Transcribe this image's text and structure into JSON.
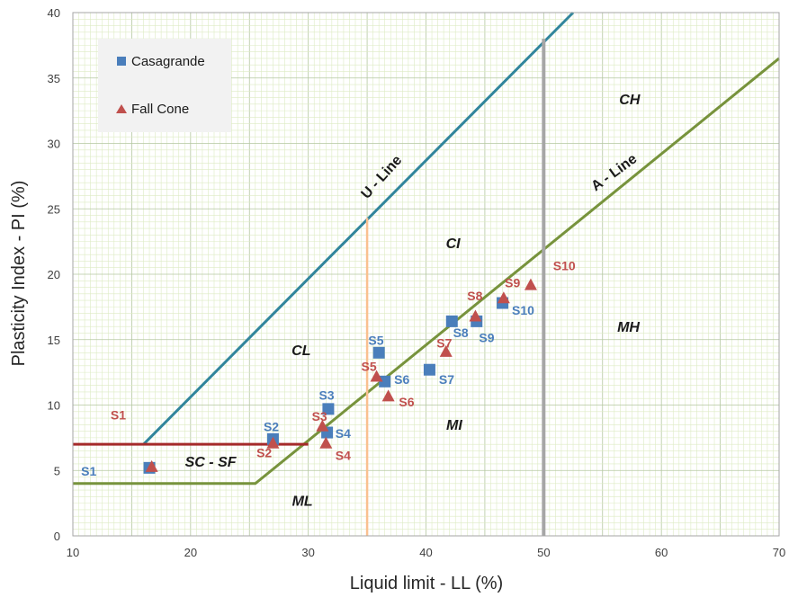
{
  "chart_data": {
    "type": "scatter",
    "xlabel": "Liquid  limit  - LL (%)",
    "ylabel": "Plasticity Index - PI (%)",
    "xlim": [
      10,
      70
    ],
    "ylim": [
      0,
      40
    ],
    "x_ticks": [
      10,
      20,
      30,
      40,
      50,
      60,
      70
    ],
    "y_ticks": [
      0,
      5,
      10,
      15,
      20,
      25,
      30,
      35,
      40
    ],
    "grid": "minor and major",
    "legend": "top-left",
    "colors": {
      "casagrande": "#4a7ebb",
      "fall_cone": "#c0504d",
      "u_line": "#31859c",
      "a_line": "#77933c",
      "pi7_line": "#a52a2a",
      "ll35_line": "#fac090",
      "ll50_line": "#a6a6a6",
      "grid_minor": "#ddebc3",
      "grid_major": "#b4c7a0"
    },
    "series": [
      {
        "name": "Casagrande",
        "marker": "square",
        "points": [
          {
            "label": "S1",
            "x": 16.5,
            "y": 5.2
          },
          {
            "label": "S2",
            "x": 27.0,
            "y": 7.4
          },
          {
            "label": "S3",
            "x": 31.7,
            "y": 9.7
          },
          {
            "label": "S4",
            "x": 31.6,
            "y": 7.9
          },
          {
            "label": "S5",
            "x": 36.0,
            "y": 14.0
          },
          {
            "label": "S6",
            "x": 36.5,
            "y": 11.8
          },
          {
            "label": "S7",
            "x": 40.3,
            "y": 12.7
          },
          {
            "label": "S8",
            "x": 42.2,
            "y": 16.4
          },
          {
            "label": "S9",
            "x": 44.3,
            "y": 16.4
          },
          {
            "label": "S10",
            "x": 46.5,
            "y": 17.8
          }
        ]
      },
      {
        "name": "Fall Cone",
        "marker": "triangle",
        "points": [
          {
            "label": "S1",
            "x": 16.7,
            "y": 5.3
          },
          {
            "label": "S2",
            "x": 27.0,
            "y": 7.1
          },
          {
            "label": "S3",
            "x": 31.2,
            "y": 8.4
          },
          {
            "label": "S4",
            "x": 31.5,
            "y": 7.1
          },
          {
            "label": "S5",
            "x": 35.8,
            "y": 12.2
          },
          {
            "label": "S6",
            "x": 36.8,
            "y": 10.7
          },
          {
            "label": "S7",
            "x": 41.7,
            "y": 14.1
          },
          {
            "label": "S8",
            "x": 44.2,
            "y": 16.8
          },
          {
            "label": "S9",
            "x": 46.6,
            "y": 18.2
          },
          {
            "label": "S10",
            "x": 48.9,
            "y": 19.2
          }
        ]
      }
    ],
    "reference_lines": [
      {
        "name": "U-Line",
        "label": "U - Line",
        "points": [
          [
            16,
            7
          ],
          [
            52.5,
            40
          ]
        ]
      },
      {
        "name": "A-Line",
        "points": [
          [
            10,
            4
          ],
          [
            25.5,
            4
          ],
          [
            70,
            36.5
          ]
        ],
        "label": "A - Line"
      },
      {
        "name": "PI-7",
        "points": [
          [
            10,
            7
          ],
          [
            30,
            7
          ]
        ]
      },
      {
        "name": "LL-35",
        "points": [
          [
            35,
            0
          ],
          [
            35,
            24.3
          ]
        ]
      },
      {
        "name": "LL-50",
        "points": [
          [
            50,
            0
          ],
          [
            50,
            38
          ]
        ]
      }
    ],
    "regions": [
      {
        "text": "CH",
        "x": 57.3,
        "y": 33.0
      },
      {
        "text": "CI",
        "x": 42.3,
        "y": 22.0
      },
      {
        "text": "CL",
        "x": 29.4,
        "y": 13.8
      },
      {
        "text": "MH",
        "x": 57.2,
        "y": 15.6
      },
      {
        "text": "MI",
        "x": 42.4,
        "y": 8.1
      },
      {
        "text": "ML",
        "x": 29.5,
        "y": 2.3
      },
      {
        "text": "SC - SF",
        "x": 21.7,
        "y": 5.3
      }
    ],
    "line_labels": [
      {
        "text": "U - Line",
        "x": 36.5,
        "y": 27.2,
        "angle": -48
      },
      {
        "text": "A - Line",
        "x": 56.2,
        "y": 27.5,
        "angle": -36
      }
    ],
    "data_labels": [
      {
        "text": "S1",
        "series": "Casagrande",
        "x": 10.7,
        "y": 4.6
      },
      {
        "text": "S2",
        "series": "Casagrande",
        "x": 26.2,
        "y": 8.0
      },
      {
        "text": "S3",
        "series": "Casagrande",
        "x": 30.9,
        "y": 10.4
      },
      {
        "text": "S4",
        "series": "Casagrande",
        "x": 32.3,
        "y": 7.5
      },
      {
        "text": "S5",
        "series": "Casagrande",
        "x": 35.1,
        "y": 14.6
      },
      {
        "text": "S6",
        "series": "Casagrande",
        "x": 37.3,
        "y": 11.6
      },
      {
        "text": "S7",
        "series": "Casagrande",
        "x": 41.1,
        "y": 11.6
      },
      {
        "text": "S8",
        "series": "Casagrande",
        "x": 42.3,
        "y": 15.2
      },
      {
        "text": "S9",
        "series": "Casagrande",
        "x": 44.5,
        "y": 14.8
      },
      {
        "text": "S10",
        "series": "Casagrande",
        "x": 47.3,
        "y": 16.9
      },
      {
        "text": "S1",
        "series": "Fall Cone",
        "x": 13.2,
        "y": 8.9
      },
      {
        "text": "S2",
        "series": "Fall Cone",
        "x": 25.6,
        "y": 6.0
      },
      {
        "text": "S3",
        "series": "Fall Cone",
        "x": 30.3,
        "y": 8.8
      },
      {
        "text": "S4",
        "series": "Fall Cone",
        "x": 32.3,
        "y": 5.8
      },
      {
        "text": "S5",
        "series": "Fall Cone",
        "x": 34.5,
        "y": 12.6
      },
      {
        "text": "S6",
        "series": "Fall Cone",
        "x": 37.7,
        "y": 9.9
      },
      {
        "text": "S7",
        "series": "Fall Cone",
        "x": 40.9,
        "y": 14.4
      },
      {
        "text": "S8",
        "series": "Fall Cone",
        "x": 43.5,
        "y": 18.0
      },
      {
        "text": "S9",
        "series": "Fall Cone",
        "x": 46.7,
        "y": 19.0
      },
      {
        "text": "S10",
        "series": "Fall Cone",
        "x": 50.8,
        "y": 20.3
      }
    ]
  }
}
